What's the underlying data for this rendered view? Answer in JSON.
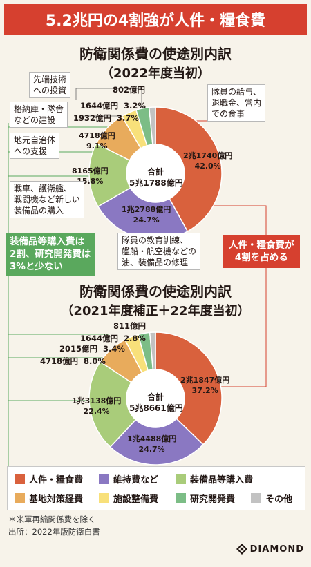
{
  "banner": "5.2兆円の4割強が人件・糧食費",
  "chart_data": [
    {
      "type": "pie",
      "title": "防衛関係費の使途別内訳",
      "subtitle": "（2022年度当初）",
      "center_label": "合計",
      "center_value": "5兆1788億円",
      "total": 51788,
      "categories": [
        "人件・糧食費",
        "維持費など",
        "装備品等購入費",
        "基地対策経費",
        "施設整備費",
        "研究開発費",
        "その他"
      ],
      "values": [
        21740,
        12788,
        8165,
        4718,
        1932,
        1644,
        802
      ],
      "value_labels": [
        "2兆1740億円",
        "1兆2788億円",
        "8165億円",
        "4718億円",
        "1932億円",
        "1644億円",
        "802億円"
      ],
      "percent_labels": [
        "42.0%",
        "24.7%",
        "15.8%",
        "9.1%",
        "3.7%",
        "3.2%",
        ""
      ]
    },
    {
      "type": "pie",
      "title": "防衛関係費の使途別内訳",
      "subtitle": "（2021年度補正＋22年度当初）",
      "center_label": "合計",
      "center_value": "5兆8661億円",
      "total": 58661,
      "categories": [
        "人件・糧食費",
        "維持費など",
        "装備品等購入費",
        "基地対策経費",
        "施設整備費",
        "研究開発費",
        "その他"
      ],
      "values": [
        21847,
        14488,
        13138,
        4718,
        2015,
        1644,
        811
      ],
      "value_labels": [
        "2兆1847億円",
        "1兆4488億円",
        "1兆3138億円",
        "4718億円",
        "2015億円",
        "1644億円",
        "811億円"
      ],
      "percent_labels": [
        "37.2%",
        "24.7%",
        "22.4%",
        "8.0%",
        "3.4%",
        "2.8%",
        ""
      ]
    }
  ],
  "colors": [
    "#d9613d",
    "#8a78c2",
    "#a9cc7a",
    "#e8ab5c",
    "#f8e07a",
    "#7cbd86",
    "#c2c2c2"
  ],
  "notes": {
    "research": [
      "先端技術",
      "への投資"
    ],
    "facility": [
      "格納庫・隊舎",
      "などの建設"
    ],
    "base": [
      "地元自治体",
      "への支援"
    ],
    "equipment": [
      "戦車、護衛艦、",
      "戦闘機など新しい",
      "装備品の購入"
    ],
    "personnel": [
      "隊員の給与、",
      "退職金、営内",
      "での食事"
    ],
    "maintenance": [
      "隊員の教育訓練、",
      "艦船・航空機などの",
      "油、装備品の修理"
    ]
  },
  "callout_green": [
    "装備品等購入費は",
    "2割、研究開発費は",
    "3%と少ない"
  ],
  "callout_red": [
    "人件・糧食費が",
    "4割を占める"
  ],
  "legend": [
    "人件・糧食費",
    "維持費など",
    "装備品等購入費",
    "基地対策経費",
    "施設整備費",
    "研究開発費",
    "その他"
  ],
  "footnotes": [
    "＊米軍再編関係費を除く",
    "出所：2022年版防衛白書"
  ],
  "logo": "DIAMOND"
}
